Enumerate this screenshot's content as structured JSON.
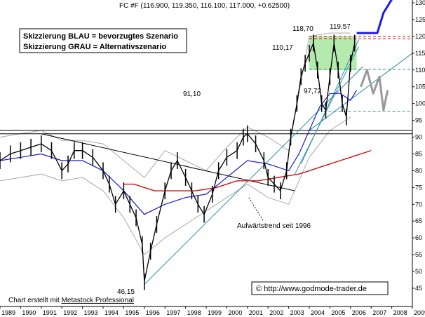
{
  "chart_data": {
    "type": "line",
    "title": "FC #F (116.900, 119.350, 116.100, 117.000, +0.62500)",
    "ylim": [
      40,
      130
    ],
    "y_ticks": [
      130,
      125,
      120,
      115,
      110,
      105,
      100,
      95,
      90,
      85,
      80,
      75,
      70,
      65,
      60,
      55,
      50,
      45
    ],
    "x_labels": [
      "1989",
      "1990",
      "1991",
      "1992",
      "1993",
      "1994",
      "1995",
      "1996",
      "1997",
      "1998",
      "1999",
      "2000",
      "2001",
      "2002",
      "2003",
      "2004",
      "2005",
      "2006",
      "2007",
      "2008",
      "2009"
    ],
    "legend": [
      "Skizzierung BLAU = bevorzugtes Szenario",
      "Skizzierung GRAU = Alternativszenario"
    ],
    "annotations": {
      "high1": "118,70",
      "high2": "119,57",
      "resistance": "110,17",
      "support_low": "97,72",
      "level": "91,10",
      "low": "46,15",
      "trend_label": "Aufwärtstrend seit 1996"
    },
    "credit_prefix": "Chart erstellt mit ",
    "credit_link": "Metastock Professional",
    "url": "© http://www.godmode-trader.de",
    "price": {
      "x": [
        1989.0,
        1989.5,
        1990.0,
        1990.5,
        1991.0,
        1991.5,
        1992.0,
        1992.3,
        1992.6,
        1993.0,
        1993.5,
        1994.0,
        1994.3,
        1994.6,
        1995.0,
        1995.3,
        1995.6,
        1995.9,
        1996.0,
        1996.3,
        1996.6,
        1997.0,
        1997.3,
        1997.6,
        1998.0,
        1998.3,
        1998.6,
        1998.9,
        1999.3,
        1999.6,
        2000.0,
        2000.5,
        2000.8,
        2001.0,
        2001.4,
        2001.8,
        2002.0,
        2002.3,
        2002.6,
        2002.9,
        2003.1,
        2003.4,
        2003.6,
        2003.8,
        2004.0,
        2004.2,
        2004.4,
        2004.6,
        2004.8,
        2005.0,
        2005.2,
        2005.4,
        2005.6,
        2005.8,
        2006.0,
        2006.2
      ],
      "y": [
        83,
        85,
        86,
        87,
        88,
        86,
        80,
        82,
        86,
        86,
        84,
        80,
        76,
        70,
        74,
        70,
        66,
        58,
        47,
        56,
        64,
        74,
        80,
        83,
        78,
        74,
        70,
        67,
        73,
        80,
        84,
        86,
        90,
        91,
        88,
        83,
        78,
        76,
        74,
        80,
        90,
        100,
        108,
        112,
        115,
        118,
        110,
        100,
        98,
        108,
        118,
        110,
        100,
        96,
        112,
        118
      ]
    },
    "ma_blue": {
      "x": [
        1989,
        1990,
        1991,
        1992,
        1993,
        1994,
        1995,
        1996,
        1997,
        1998,
        1999,
        2000,
        2001,
        2002,
        2003,
        2003.5,
        2004,
        2004.5,
        2005,
        2005.5,
        2006,
        2006.3
      ],
      "y": [
        83,
        84,
        85,
        83,
        83,
        80,
        74,
        67,
        70,
        72,
        73,
        78,
        83,
        82,
        80,
        85,
        92,
        99,
        103,
        103,
        101,
        104
      ]
    },
    "ma_red": {
      "x": [
        1995.0,
        1995.5,
        1996,
        1996.5,
        1997,
        1997.5,
        1998,
        1998.5,
        1999,
        1999.5,
        2000,
        2000.5,
        2001,
        2001.5,
        2002,
        2002.5,
        2003,
        2003.5,
        2004,
        2004.5,
        2005,
        2005.5,
        2006,
        2006.5,
        2007
      ],
      "y": [
        76,
        76,
        75,
        74,
        74,
        74,
        74,
        74,
        74.5,
        75,
        76,
        77,
        77,
        77,
        77.5,
        78,
        78.5,
        79,
        80,
        81,
        82,
        83,
        84,
        85,
        86
      ]
    },
    "band_upper": {
      "x": [
        1989,
        1990,
        1991,
        1992,
        1993,
        1994,
        1995,
        1996,
        1997,
        1998,
        1999,
        2000,
        2001,
        2002,
        2003,
        2004,
        2005,
        2006
      ],
      "y": [
        90,
        91,
        92,
        89,
        89,
        88,
        83,
        78,
        86,
        83,
        80,
        87,
        93,
        90,
        86,
        120,
        121,
        121
      ]
    },
    "band_lower": {
      "x": [
        1989,
        1990,
        1991,
        1992,
        1993,
        1994,
        1995,
        1996,
        1997,
        1998,
        1999,
        2000,
        2001,
        2002,
        2003,
        2004,
        2005,
        2006
      ],
      "y": [
        77,
        78,
        79,
        77,
        78,
        74,
        66,
        55,
        60,
        64,
        68,
        72,
        76,
        72,
        70,
        84,
        92,
        96
      ]
    },
    "trendline_down": {
      "x": [
        1991.0,
        2003.3
      ],
      "y": [
        91,
        74
      ]
    },
    "trendline_up": [
      {
        "x": [
          1996.0,
          2006.6
        ],
        "y": [
          46.15,
          111
        ]
      },
      {
        "x": [
          2003.3,
          2006.4
        ],
        "y": [
          79,
          117
        ]
      },
      {
        "x": [
          2003.6,
          2006.4
        ],
        "y": [
          82,
          119
        ]
      },
      {
        "x": [
          2004.0,
          2009.0
        ],
        "y": [
          92,
          115
        ]
      }
    ],
    "hlines": [
      {
        "y": 92,
        "x": [
          1989,
          2009
        ],
        "color": "#000000",
        "dash": false
      },
      {
        "y": 91,
        "x": [
          1989,
          2009
        ],
        "color": "#000000",
        "dash": false
      },
      {
        "y": 120,
        "x": [
          2004.0,
          2009.0
        ],
        "color": "#dd0000",
        "dash": true
      },
      {
        "y": 119.3,
        "x": [
          2004.0,
          2009.0
        ],
        "color": "#dd0000",
        "dash": true
      },
      {
        "y": 110.17,
        "x": [
          2004.0,
          2009.0
        ],
        "color": "#2e9e6e",
        "dash": true
      },
      {
        "y": 97.72,
        "x": [
          2004.7,
          2009.0
        ],
        "color": "#2e9e6e",
        "dash": true
      }
    ],
    "resistance_zone": {
      "x": [
        2004.0,
        2006.3
      ],
      "y": [
        110,
        120
      ]
    },
    "scenario_blue": {
      "x": [
        2006.3,
        2006.8,
        2007.3,
        2007.6,
        2008.0
      ],
      "y": [
        121,
        121,
        121,
        127,
        131
      ]
    },
    "scenario_grey": {
      "x": [
        2006.5,
        2006.8,
        2007.1,
        2007.4,
        2007.6,
        2007.8
      ],
      "y": [
        105,
        110,
        103,
        108,
        98,
        104
      ]
    },
    "colors": {
      "price": "#000000",
      "ma_blue": "#1a1acc",
      "ma_red": "#cc1111",
      "band": "#a8a8a8",
      "trend": "#2a8fa8",
      "scenario_blue": "#1a1aee",
      "scenario_grey": "#999999",
      "zone": "#a8e6a0"
    }
  }
}
